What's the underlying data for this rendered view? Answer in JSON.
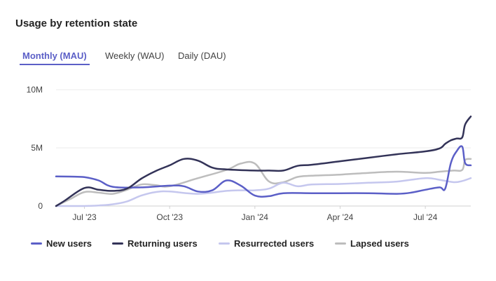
{
  "card": {
    "title": "Usage by retention state"
  },
  "tabs": [
    {
      "label": "Monthly (MAU)",
      "active": true
    },
    {
      "label": "Weekly (WAU)",
      "active": false
    },
    {
      "label": "Daily (DAU)",
      "active": false
    }
  ],
  "chart_data": {
    "type": "line",
    "title": "Usage by retention state",
    "xlabel": "",
    "ylabel": "",
    "ylim": [
      0,
      10000000
    ],
    "yticks": [
      {
        "value": 0,
        "label": "0"
      },
      {
        "value": 5000000,
        "label": "5M"
      },
      {
        "value": 10000000,
        "label": "10M"
      }
    ],
    "xlim": [
      0,
      14.6
    ],
    "xticks": [
      {
        "value": 1,
        "label": "Jul '23"
      },
      {
        "value": 4,
        "label": "Oct '23"
      },
      {
        "value": 7,
        "label": "Jan '24"
      },
      {
        "value": 10,
        "label": "Apr '24"
      },
      {
        "value": 13,
        "label": "Jul '24"
      }
    ],
    "grid": true,
    "legend": "bottom",
    "series": [
      {
        "name": "New users",
        "color": "#5b5fc7",
        "x": [
          0,
          0.5,
          1.0,
          1.5,
          2.0,
          3.0,
          4.0,
          4.5,
          5.0,
          5.5,
          6.0,
          6.5,
          7.0,
          7.5,
          8.0,
          9.0,
          10.0,
          11.0,
          12.0,
          12.5,
          13.0,
          13.5,
          13.7,
          13.9,
          14.1,
          14.3,
          14.4,
          14.6
        ],
        "y": [
          2550000,
          2530000,
          2480000,
          2200000,
          1650000,
          1600000,
          1750000,
          1700000,
          1250000,
          1350000,
          2200000,
          1750000,
          900000,
          850000,
          1100000,
          1100000,
          1100000,
          1100000,
          1050000,
          1150000,
          1400000,
          1600000,
          1500000,
          3700000,
          4700000,
          5100000,
          3700000,
          3500000
        ]
      },
      {
        "name": "Returning users",
        "color": "#333358",
        "x": [
          0,
          0.3,
          1.0,
          1.5,
          2.0,
          2.5,
          3.0,
          3.5,
          4.0,
          4.5,
          5.0,
          5.5,
          6.0,
          7.0,
          7.5,
          8.0,
          8.5,
          9.0,
          10.0,
          11.0,
          12.0,
          13.0,
          13.5,
          13.7,
          13.9,
          14.1,
          14.3,
          14.4,
          14.6
        ],
        "y": [
          0,
          450000,
          1550000,
          1400000,
          1300000,
          1500000,
          2350000,
          3000000,
          3500000,
          4050000,
          3900000,
          3300000,
          3150000,
          3050000,
          3050000,
          3050000,
          3450000,
          3550000,
          3850000,
          4150000,
          4450000,
          4700000,
          4950000,
          5350000,
          5650000,
          5800000,
          5900000,
          7000000,
          7700000
        ]
      },
      {
        "name": "Resurrected users",
        "color": "#c5c7ee",
        "x": [
          0,
          0.5,
          1.0,
          1.5,
          2.0,
          2.5,
          3.0,
          3.5,
          4.0,
          5.0,
          6.0,
          6.5,
          7.0,
          7.5,
          8.0,
          8.5,
          9.0,
          10.0,
          11.0,
          12.0,
          13.0,
          13.5,
          14.0,
          14.3,
          14.6
        ],
        "y": [
          0,
          0,
          0,
          50000,
          150000,
          400000,
          900000,
          1200000,
          1250000,
          1050000,
          1300000,
          1350000,
          1350000,
          1500000,
          2000000,
          1700000,
          1850000,
          1900000,
          2000000,
          2100000,
          2400000,
          2250000,
          2050000,
          2150000,
          2400000
        ]
      },
      {
        "name": "Lapsed users",
        "color": "#bdbdbd",
        "x": [
          0,
          0.5,
          1.0,
          1.5,
          2.0,
          2.5,
          3.0,
          3.5,
          4.0,
          5.0,
          6.0,
          6.5,
          7.0,
          7.5,
          8.0,
          8.5,
          9.0,
          10.0,
          11.0,
          12.0,
          13.0,
          13.5,
          14.0,
          14.3,
          14.4,
          14.6
        ],
        "y": [
          0,
          600000,
          1200000,
          1150000,
          1050000,
          1400000,
          1850000,
          1800000,
          1700000,
          2400000,
          3100000,
          3650000,
          3650000,
          2100000,
          2050000,
          2500000,
          2600000,
          2700000,
          2850000,
          2950000,
          2850000,
          2950000,
          3050000,
          3100000,
          3950000,
          4050000
        ]
      }
    ]
  }
}
